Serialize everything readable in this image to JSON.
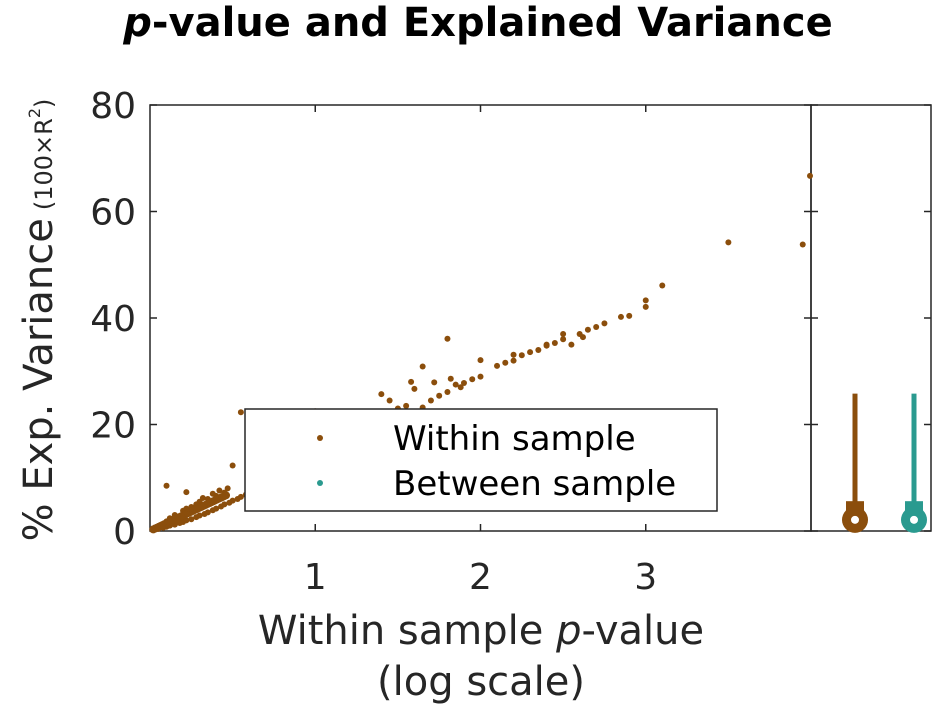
{
  "chart_data": {
    "type": "scatter",
    "title": "p-value and Explained Variance",
    "title_prefix": "p",
    "title_rest": "-value and Explained Variance",
    "xlabel_line1_a": "Within sample ",
    "xlabel_line1_b": "p",
    "xlabel_line1_c": "-value",
    "xlabel_line2": "(log scale)",
    "ylabel_main": "% Exp. Variance",
    "ylabel_sub": "(100×R",
    "ylabel_sup": "2",
    "ylabel_close": ")",
    "xlim": [
      0,
      4
    ],
    "ylim": [
      0,
      80
    ],
    "xscale": "log",
    "xticks": [
      1,
      2,
      3
    ],
    "xtick_labels": [
      "1",
      "2",
      "3"
    ],
    "yticks": [
      0,
      20,
      40,
      60,
      80
    ],
    "ytick_labels": [
      "0",
      "20",
      "40",
      "60",
      "80"
    ],
    "legend_placement": "lower-center",
    "series": [
      {
        "name": "Within sample",
        "color": "#8B4E0C",
        "points": [
          [
            0.05,
            0.4
          ],
          [
            0.08,
            0.6
          ],
          [
            0.1,
            0.8
          ],
          [
            0.12,
            1.0
          ],
          [
            0.15,
            1.2
          ],
          [
            0.18,
            1.5
          ],
          [
            0.2,
            1.7
          ],
          [
            0.22,
            2.0
          ],
          [
            0.25,
            2.2
          ],
          [
            0.28,
            2.6
          ],
          [
            0.3,
            2.9
          ],
          [
            0.33,
            3.2
          ],
          [
            0.35,
            3.5
          ],
          [
            0.38,
            3.9
          ],
          [
            0.4,
            4.2
          ],
          [
            0.43,
            4.6
          ],
          [
            0.45,
            5.0
          ],
          [
            0.48,
            5.3
          ],
          [
            0.5,
            5.7
          ],
          [
            0.53,
            6.0
          ],
          [
            0.55,
            6.4
          ],
          [
            0.58,
            6.8
          ],
          [
            0.6,
            7.1
          ],
          [
            0.63,
            7.5
          ],
          [
            0.65,
            7.8
          ],
          [
            0.68,
            8.3
          ],
          [
            0.7,
            8.6
          ],
          [
            0.73,
            9.0
          ],
          [
            0.75,
            9.4
          ],
          [
            0.15,
            3.0
          ],
          [
            0.2,
            3.8
          ],
          [
            0.25,
            4.5
          ],
          [
            0.3,
            5.5
          ],
          [
            0.35,
            6.0
          ],
          [
            0.4,
            6.6
          ],
          [
            0.45,
            7.2
          ],
          [
            0.12,
            2.4
          ],
          [
            0.1,
            1.8
          ],
          [
            0.22,
            4.2
          ],
          [
            0.28,
            5.0
          ],
          [
            0.32,
            6.2
          ],
          [
            0.38,
            7.0
          ],
          [
            0.42,
            7.6
          ],
          [
            0.47,
            8.0
          ],
          [
            0.1,
            8.5
          ],
          [
            0.22,
            7.3
          ],
          [
            0.5,
            12.3
          ],
          [
            0.55,
            22.3
          ],
          [
            0.65,
            10.5
          ],
          [
            0.8,
            12.4
          ],
          [
            0.85,
            13.0
          ],
          [
            0.9,
            14.0
          ],
          [
            0.95,
            14.8
          ],
          [
            1.0,
            22.5
          ],
          [
            1.05,
            15.6
          ],
          [
            1.1,
            16.3
          ],
          [
            1.15,
            17.0
          ],
          [
            1.2,
            17.8
          ],
          [
            1.25,
            18.6
          ],
          [
            1.3,
            19.3
          ],
          [
            1.35,
            20.0
          ],
          [
            1.4,
            20.8
          ],
          [
            1.45,
            24.5
          ],
          [
            1.5,
            23.0
          ],
          [
            1.55,
            23.5
          ],
          [
            1.6,
            22.3
          ],
          [
            1.65,
            23.2
          ],
          [
            1.7,
            24.5
          ],
          [
            1.75,
            25.4
          ],
          [
            1.8,
            26.1
          ],
          [
            1.82,
            28.6
          ],
          [
            1.85,
            27.5
          ],
          [
            1.88,
            27.0
          ],
          [
            1.9,
            27.8
          ],
          [
            1.95,
            28.5
          ],
          [
            2.0,
            29.0
          ],
          [
            1.65,
            30.9
          ],
          [
            1.8,
            36.1
          ],
          [
            2.0,
            32.1
          ],
          [
            1.4,
            25.7
          ],
          [
            1.5,
            21.9
          ],
          [
            1.6,
            26.7
          ],
          [
            1.58,
            28.0
          ],
          [
            1.72,
            27.9
          ],
          [
            2.1,
            31.0
          ],
          [
            2.15,
            31.6
          ],
          [
            2.2,
            32.0
          ],
          [
            2.25,
            33.0
          ],
          [
            2.3,
            33.6
          ],
          [
            2.35,
            34.0
          ],
          [
            2.4,
            34.8
          ],
          [
            2.45,
            35.3
          ],
          [
            2.5,
            36.0
          ],
          [
            2.55,
            35.0
          ],
          [
            2.6,
            37.0
          ],
          [
            2.65,
            37.8
          ],
          [
            2.7,
            38.3
          ],
          [
            2.75,
            39.0
          ],
          [
            2.2,
            33.1
          ],
          [
            2.5,
            37.0
          ],
          [
            2.62,
            36.4
          ],
          [
            2.4,
            35.0
          ],
          [
            2.85,
            40.2
          ],
          [
            2.9,
            40.4
          ],
          [
            3.0,
            42.1
          ],
          [
            3.0,
            43.3
          ],
          [
            3.1,
            46.1
          ],
          [
            3.5,
            54.2
          ],
          [
            3.95,
            53.8
          ],
          [
            4.0,
            66.7
          ]
        ]
      },
      {
        "name": "Between sample",
        "color": "#2A9A8F",
        "points": []
      }
    ],
    "marginal": {
      "within": {
        "whisker_top": 25.8,
        "box_top": 5.6,
        "median": 2.1,
        "color": "#8B4E0C"
      },
      "between": {
        "whisker_top": 25.8,
        "box_top": 5.6,
        "median": 2.1,
        "color": "#2A9A8F"
      }
    }
  }
}
